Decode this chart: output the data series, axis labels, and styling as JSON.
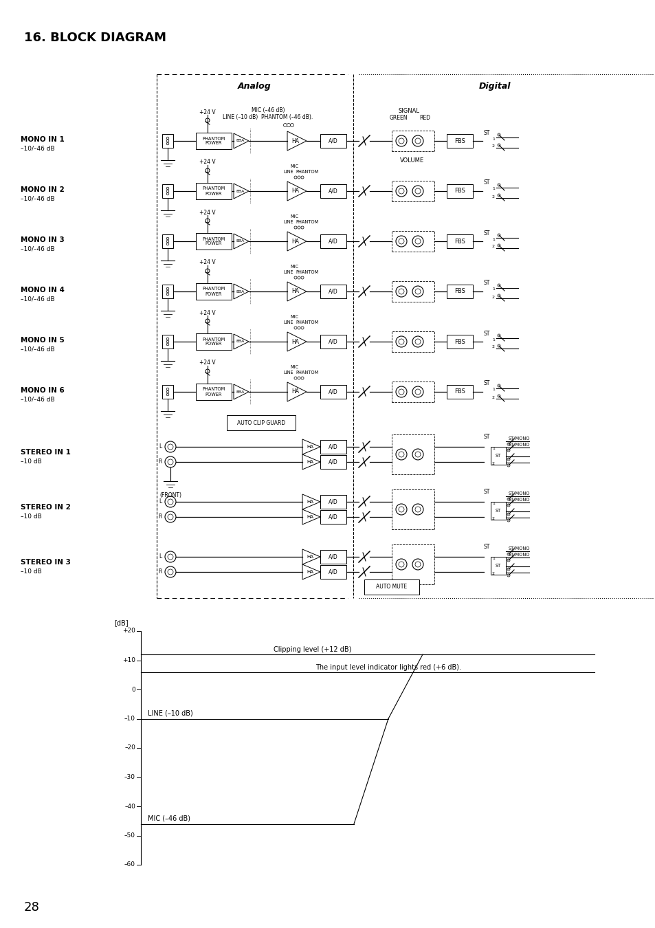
{
  "title": "16. BLOCK DIAGRAM",
  "page_number": "28",
  "bg": "#ffffff",
  "analog_label": "Analog",
  "digital_label": "Digital",
  "signal_label": "SIGNAL",
  "green_label": "GREEN",
  "red_label": "RED",
  "volume_label": "VOLUME",
  "fbs_label": "FBS",
  "ha_label": "HA",
  "ad_label": "A/D",
  "eba_label": "EBA",
  "plus24v": "+24 V",
  "phantom_power": "PHANTOM\nPOWER",
  "auto_clip_guard": "AUTO CLIP GUARD",
  "auto_mute": "AUTO MUTE",
  "mic_header1": "MIC (–46 dB)",
  "mic_header2": "LINE (–10 dB)  PHANTOM (–46 dB).",
  "mic_label": "MIC",
  "line_label": "LINE",
  "phantom_label": "PHANTOM",
  "st_label": "ST",
  "st_mono": "ST/MONO",
  "front_label": "(FRONT)",
  "mono_channels": [
    {
      "label": "MONO IN 1",
      "sub": "–10/–46 dB"
    },
    {
      "label": "MONO IN 2",
      "sub": "–10/–46 dB"
    },
    {
      "label": "MONO IN 3",
      "sub": "–10/–46 dB"
    },
    {
      "label": "MONO IN 4",
      "sub": "–10/–46 dB"
    },
    {
      "label": "MONO IN 5",
      "sub": "–10/–46 dB"
    },
    {
      "label": "MONO IN 6",
      "sub": "–10/–46 dB"
    }
  ],
  "stereo_channels": [
    {
      "label": "STEREO IN 1",
      "sub": "–10 dB",
      "has_front": true
    },
    {
      "label": "STEREO IN 2",
      "sub": "–10 dB",
      "has_front": false
    },
    {
      "label": "STEREO IN 3",
      "sub": "–10 dB",
      "has_front": false
    }
  ],
  "db_ticks": [
    20,
    10,
    0,
    -10,
    -20,
    -30,
    -40,
    -50,
    -60
  ],
  "db_tick_labels": [
    "+20",
    "+10",
    "0",
    "–10",
    "–20",
    "–30",
    "–40",
    "–50",
    "–60"
  ],
  "db_label": "[dB]",
  "clipping_text": "Clipping level (+12 dB)",
  "indicator_text": "The input level indicator lights red (+6 dB).",
  "line_text": "LINE (–10 dB)",
  "mic_text": "MIC (–46 dB)"
}
